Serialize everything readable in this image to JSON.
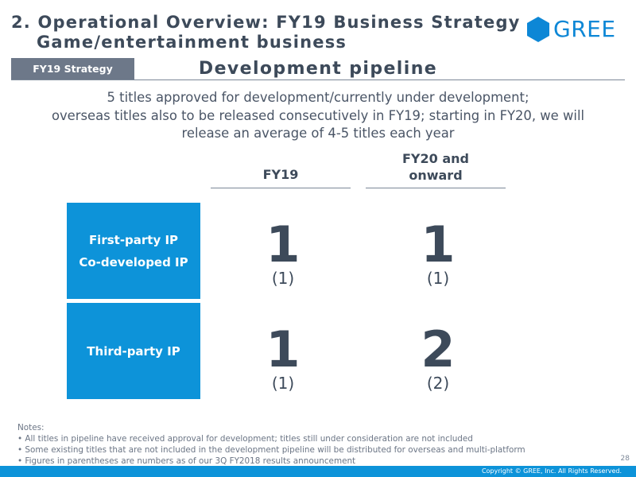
{
  "header": {
    "title_line1": "2. Operational Overview: FY19 Business Strategy",
    "title_line2": "Game/entertainment business",
    "logo_text": "GREE",
    "logo_color": "#0d87d6"
  },
  "section": {
    "tag": "FY19 Strategy",
    "subtitle": "Development pipeline"
  },
  "summary": {
    "line1": "5 titles approved for development/currently under development;",
    "line2": "overseas titles also to be released consecutively in FY19; starting in FY20, we will",
    "line3": "release an average of 4-5 titles each year"
  },
  "table": {
    "columns": [
      "FY19",
      "FY20 and\nonward"
    ],
    "column_line1": [
      "FY19",
      "FY20 and"
    ],
    "column_line2": [
      "",
      "onward"
    ],
    "rows": [
      {
        "label_lines": [
          "First-party IP",
          "Co-developed IP"
        ],
        "values": [
          {
            "main": "1",
            "paren": "(1)"
          },
          {
            "main": "1",
            "paren": "(1)"
          }
        ]
      },
      {
        "label_lines": [
          "Third-party IP"
        ],
        "values": [
          {
            "main": "1",
            "paren": "(1)"
          },
          {
            "main": "2",
            "paren": "(2)"
          }
        ]
      }
    ],
    "box_color": "#0d93d9"
  },
  "notes": {
    "heading": "Notes:",
    "items": [
      "• All titles in pipeline have received approval for development; titles still under consideration are not included",
      "• Some existing titles that are not included in the development pipeline will be distributed for overseas and  multi-platform",
      "• Figures in parentheses are numbers as of our 3Q FY2018 results announcement"
    ]
  },
  "page_number": "28",
  "footer": {
    "copyright": "Copyright © GREE, Inc. All Rights Reserved."
  }
}
